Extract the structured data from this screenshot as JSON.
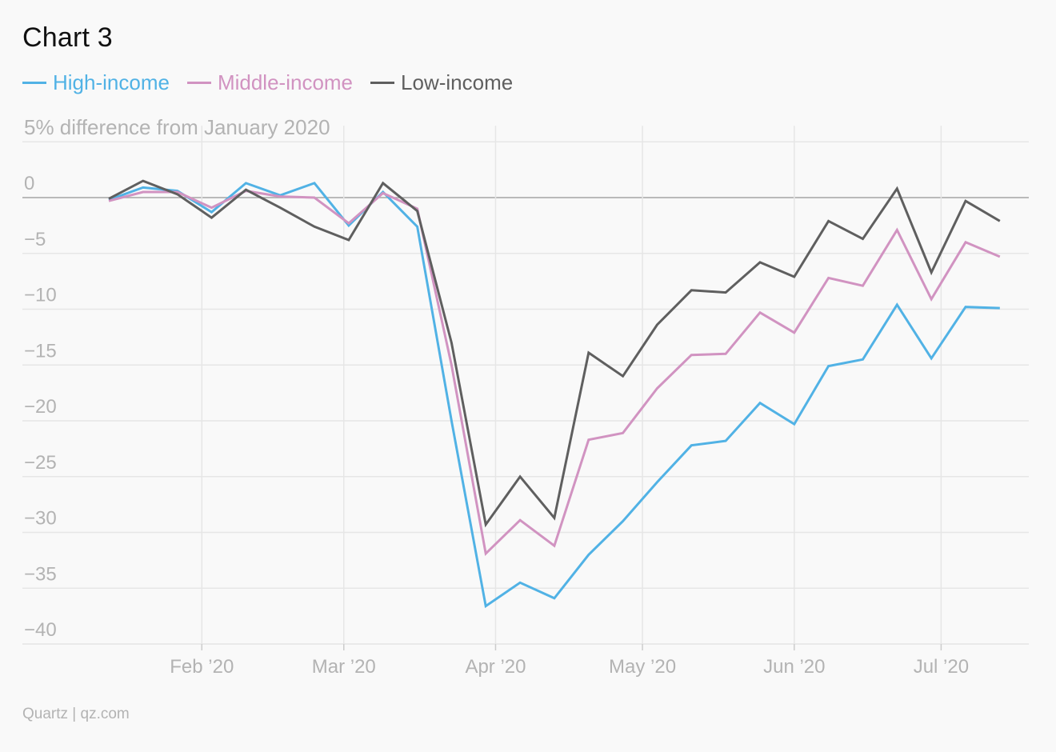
{
  "title": "Chart 3",
  "source": "Quartz | qz.com",
  "colors": {
    "high": "#51b2e5",
    "middle": "#d193c1",
    "low": "#5f5f5f"
  },
  "chart_data": {
    "type": "line",
    "ylabel": "5% difference from January 2020",
    "ylim": [
      -40,
      5
    ],
    "yticks": [
      0,
      -5,
      -10,
      -15,
      -20,
      -25,
      -30,
      -35,
      -40
    ],
    "ytick_labels": [
      "0",
      "−5",
      "−10",
      "−15",
      "−20",
      "−25",
      "−30",
      "−35",
      "−40"
    ],
    "xticks": [
      {
        "date": "2020-02-01",
        "label": "Feb ’20"
      },
      {
        "date": "2020-03-01",
        "label": "Mar ’20"
      },
      {
        "date": "2020-04-01",
        "label": "Apr ’20"
      },
      {
        "date": "2020-05-01",
        "label": "May ’20"
      },
      {
        "date": "2020-06-01",
        "label": "Jun ’20"
      },
      {
        "date": "2020-07-01",
        "label": "Jul ’20"
      }
    ],
    "x": [
      "2020-01-13",
      "2020-01-20",
      "2020-01-27",
      "2020-02-03",
      "2020-02-10",
      "2020-02-17",
      "2020-02-24",
      "2020-03-02",
      "2020-03-09",
      "2020-03-16",
      "2020-03-23",
      "2020-03-30",
      "2020-04-06",
      "2020-04-13",
      "2020-04-20",
      "2020-04-27",
      "2020-05-04",
      "2020-05-11",
      "2020-05-18",
      "2020-05-25",
      "2020-06-01",
      "2020-06-08",
      "2020-06-15",
      "2020-06-22",
      "2020-06-29",
      "2020-07-06",
      "2020-07-13"
    ],
    "series": [
      {
        "name": "High-income",
        "color_key": "high",
        "values": [
          -0.2,
          0.9,
          0.6,
          -1.3,
          1.3,
          0.2,
          1.3,
          -2.5,
          0.5,
          -2.6,
          -20.0,
          -36.6,
          -34.5,
          -35.9,
          -32.0,
          -29.0,
          -25.5,
          -22.2,
          -21.8,
          -18.4,
          -20.3,
          -15.1,
          -14.5,
          -9.6,
          -14.4,
          -9.8,
          -9.9
        ]
      },
      {
        "name": "Middle-income",
        "color_key": "middle",
        "values": [
          -0.3,
          0.5,
          0.5,
          -0.9,
          0.6,
          0.1,
          0.0,
          -2.3,
          0.4,
          -1.0,
          -15.0,
          -31.9,
          -28.9,
          -31.2,
          -21.7,
          -21.1,
          -17.1,
          -14.1,
          -14.0,
          -10.3,
          -12.1,
          -7.2,
          -7.9,
          -2.9,
          -9.1,
          -4.0,
          -5.3
        ]
      },
      {
        "name": "Low-income",
        "color_key": "low",
        "values": [
          -0.1,
          1.5,
          0.3,
          -1.8,
          0.7,
          -0.9,
          -2.6,
          -3.8,
          1.3,
          -1.2,
          -13.0,
          -29.3,
          -25.0,
          -28.7,
          -13.9,
          -16.0,
          -11.4,
          -8.3,
          -8.5,
          -5.8,
          -7.1,
          -2.1,
          -3.7,
          0.8,
          -6.7,
          -0.3,
          -2.1
        ]
      }
    ],
    "grid": true,
    "legend": "top-left"
  }
}
